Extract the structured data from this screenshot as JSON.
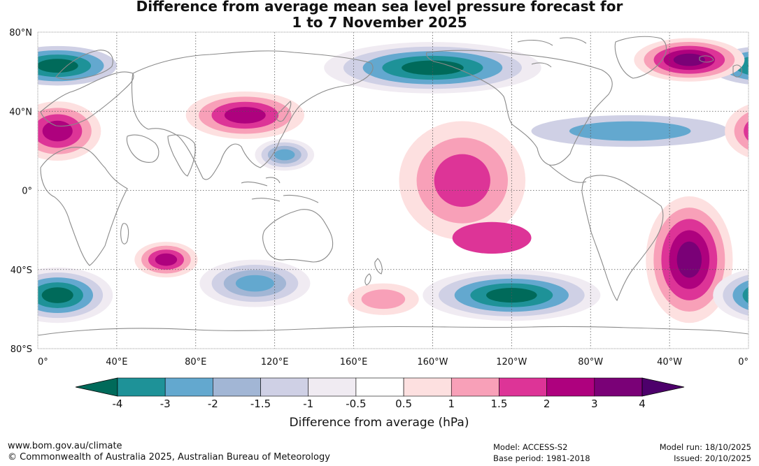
{
  "title": {
    "line1": "Difference from average mean sea level pressure forecast for",
    "line2": "1 to 7 November 2025"
  },
  "axes": {
    "lat_labels": [
      "80°N",
      "40°N",
      "0°",
      "40°S",
      "80°S"
    ],
    "lat_values": [
      80,
      40,
      0,
      -40,
      -80
    ],
    "lon_labels": [
      "0°",
      "40°E",
      "80°E",
      "120°E",
      "160°E",
      "160°W",
      "120°W",
      "80°W",
      "40°W",
      "0°"
    ],
    "lon_values": [
      0,
      40,
      80,
      120,
      160,
      200,
      240,
      280,
      320,
      360
    ]
  },
  "colorbar": {
    "title": "Difference from average (hPa)",
    "tick_labels": [
      "-4",
      "-3",
      "-2",
      "-1.5",
      "-1",
      "-0.5",
      "0.5",
      "1",
      "1.5",
      "2",
      "3",
      "4"
    ],
    "colors": [
      "#006a5a",
      "#1e9298",
      "#63a8cf",
      "#a2b6d5",
      "#cfd0e5",
      "#f0ebf2",
      "#ffffff",
      "#fde0e0",
      "#f8a0b8",
      "#dd3497",
      "#ae017e",
      "#7a0177",
      "#4d006b"
    ]
  },
  "footer": {
    "website": "www.bom.gov.au/climate",
    "copyright": "© Commonwealth of Australia 2025, Australian Bureau of Meteorology",
    "model": "Model: ACCESS-S2",
    "base_period": "Base period: 1981-2018",
    "model_run": "Model run: 18/10/2025",
    "issued": "Issued: 20/10/2025"
  },
  "map_data": {
    "projection": "equirectangular, 0° to 360° longitude, 80°S to 80°N",
    "anomaly_regions": [
      {
        "name": "North Atlantic / Europe low",
        "lon": 10,
        "lat": 63,
        "rx": 30,
        "ry": 10,
        "levels": [
          -1,
          -2,
          -3,
          -4
        ]
      },
      {
        "name": "North Pacific / Alaska low",
        "lon": 200,
        "lat": 62,
        "rx": 55,
        "ry": 13,
        "levels": [
          -0.5,
          -1,
          -2,
          -3,
          -4
        ]
      },
      {
        "name": "North America / Atlantic low belt",
        "lon": 300,
        "lat": 30,
        "rx": 50,
        "ry": 8,
        "levels": [
          -1,
          -2
        ]
      },
      {
        "name": "Greenland high",
        "lon": 330,
        "lat": 66,
        "rx": 28,
        "ry": 11,
        "levels": [
          0.5,
          1,
          1.5,
          2,
          3
        ]
      },
      {
        "name": "Europe / North Africa high",
        "lon": 10,
        "lat": 30,
        "rx": 22,
        "ry": 15,
        "levels": [
          0.5,
          1,
          1.5,
          2
        ]
      },
      {
        "name": "East Asia high",
        "lon": 105,
        "lat": 38,
        "rx": 30,
        "ry": 12,
        "levels": [
          0.5,
          1,
          1.5,
          2
        ]
      },
      {
        "name": "Western Pacific low",
        "lon": 125,
        "lat": 18,
        "rx": 15,
        "ry": 8,
        "levels": [
          -0.5,
          -1,
          -1.5,
          -2
        ]
      },
      {
        "name": "Central Pacific high",
        "lon": 215,
        "lat": 5,
        "rx": 32,
        "ry": 30,
        "levels": [
          0.5,
          1,
          1.5
        ]
      },
      {
        "name": "South Pacific high",
        "lon": 230,
        "lat": -24,
        "rx": 20,
        "ry": 8,
        "levels": [
          1.5
        ]
      },
      {
        "name": "South Atlantic high",
        "lon": 330,
        "lat": -35,
        "rx": 22,
        "ry": 32,
        "levels": [
          0.5,
          1,
          1.5,
          2,
          3
        ]
      },
      {
        "name": "Southern Indian Ocean high",
        "lon": 65,
        "lat": -35,
        "rx": 16,
        "ry": 9,
        "levels": [
          0.5,
          1,
          1.5,
          2
        ]
      },
      {
        "name": "South of Australia low",
        "lon": 110,
        "lat": -47,
        "rx": 28,
        "ry": 12,
        "levels": [
          -0.5,
          -1,
          -1.5,
          -2
        ]
      },
      {
        "name": "Southern Ocean low (Atlantic sector)",
        "lon": 10,
        "lat": -53,
        "rx": 28,
        "ry": 14,
        "levels": [
          -0.5,
          -1,
          -2,
          -3,
          -4
        ]
      },
      {
        "name": "Southern Ocean low (Pacific sector)",
        "lon": 240,
        "lat": -53,
        "rx": 45,
        "ry": 13,
        "levels": [
          -0.5,
          -1,
          -2,
          -3,
          -4
        ]
      },
      {
        "name": "South Pacific high near New Zealand",
        "lon": 175,
        "lat": -55,
        "rx": 18,
        "ry": 8,
        "levels": [
          0.5,
          1
        ]
      }
    ]
  }
}
